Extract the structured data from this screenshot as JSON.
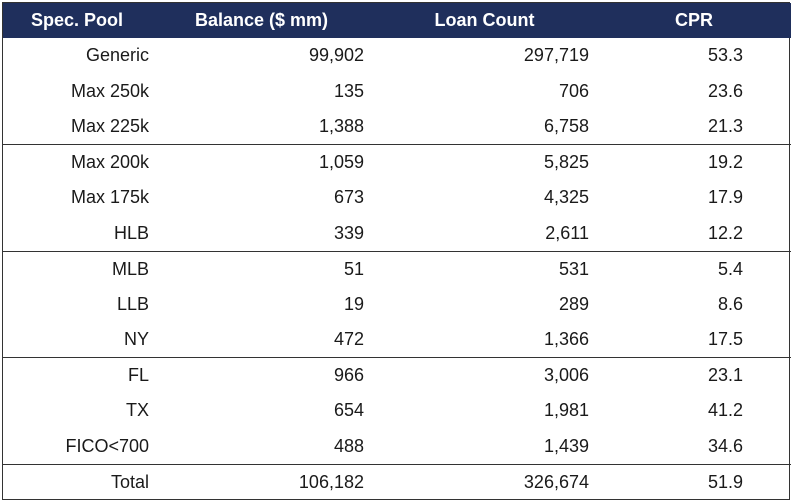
{
  "table": {
    "headers": {
      "pool": "Spec.  Pool",
      "balance": "Balance ($ mm)",
      "count": "Loan Count",
      "cpr": "CPR"
    },
    "rows": [
      {
        "pool": "Generic",
        "balance": "99,902",
        "count": "297,719",
        "cpr": "53.3"
      },
      {
        "pool": "Max 250k",
        "balance": "135",
        "count": "706",
        "cpr": "23.6"
      },
      {
        "pool": "Max 225k",
        "balance": "1,388",
        "count": "6,758",
        "cpr": "21.3"
      },
      {
        "pool": "Max 200k",
        "balance": "1,059",
        "count": "5,825",
        "cpr": "19.2"
      },
      {
        "pool": "Max 175k",
        "balance": "673",
        "count": "4,325",
        "cpr": "17.9"
      },
      {
        "pool": "HLB",
        "balance": "339",
        "count": "2,611",
        "cpr": "12.2"
      },
      {
        "pool": "MLB",
        "balance": "51",
        "count": "531",
        "cpr": "5.4"
      },
      {
        "pool": "LLB",
        "balance": "19",
        "count": "289",
        "cpr": "8.6"
      },
      {
        "pool": "NY",
        "balance": "472",
        "count": "1,366",
        "cpr": "17.5"
      },
      {
        "pool": "FL",
        "balance": "966",
        "count": "3,006",
        "cpr": "23.1"
      },
      {
        "pool": "TX",
        "balance": "654",
        "count": "1,981",
        "cpr": "41.2"
      },
      {
        "pool": "FICO<700",
        "balance": "488",
        "count": "1,439",
        "cpr": "34.6"
      }
    ],
    "total": {
      "pool": "Total",
      "balance": "106,182",
      "count": "326,674",
      "cpr": "51.9"
    }
  },
  "colors": {
    "header_bg": "#1f2f5c",
    "header_text": "#ffffff",
    "rule": "#333333"
  }
}
